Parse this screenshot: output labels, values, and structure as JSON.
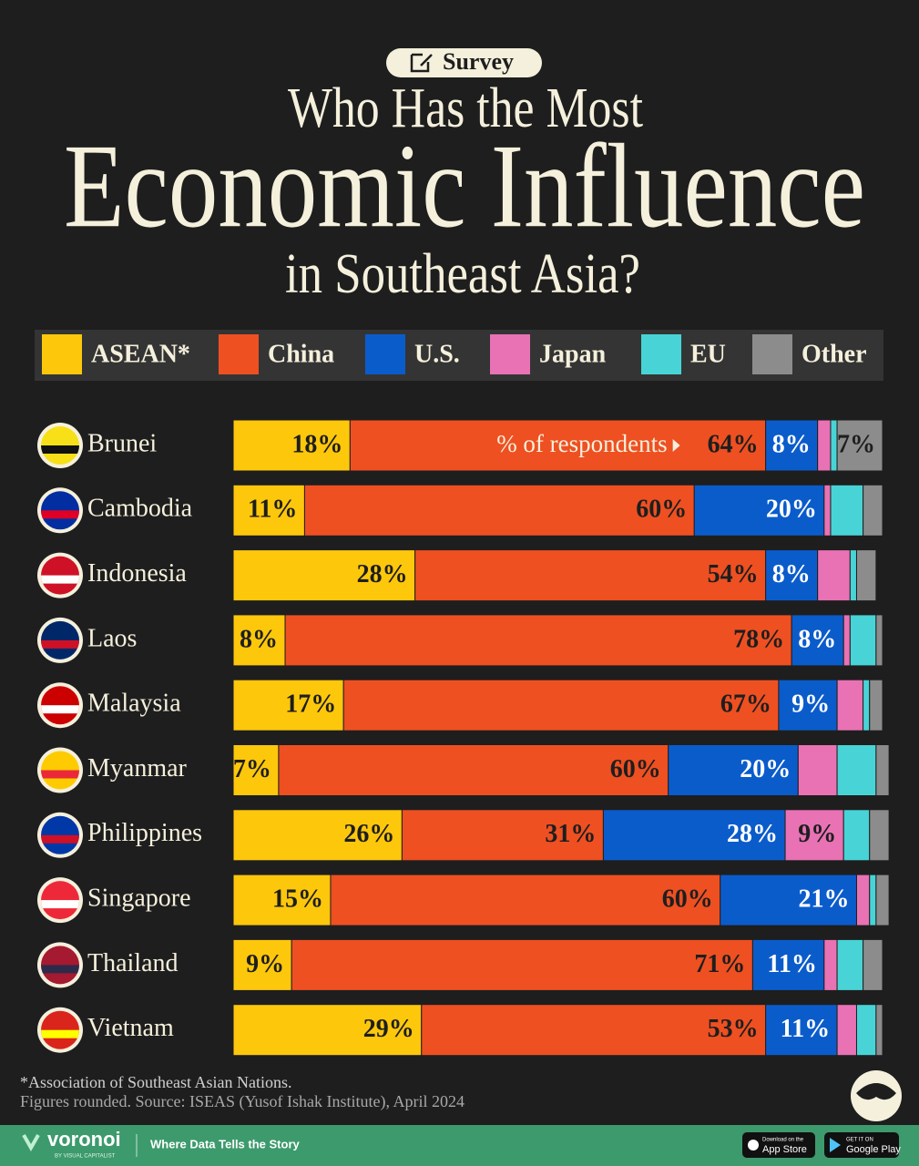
{
  "chart_data": {
    "type": "stacked_bar_horizontal",
    "badge": "Survey",
    "title_parts": [
      "Who Has the Most",
      "Economic Influence",
      "in Southeast Asia?"
    ],
    "annotation": "% of respondents",
    "categories": [
      "Brunei",
      "Cambodia",
      "Indonesia",
      "Laos",
      "Malaysia",
      "Myanmar",
      "Philippines",
      "Singapore",
      "Thailand",
      "Vietnam"
    ],
    "xlim": [
      0,
      100
    ],
    "legend": "top",
    "series": [
      {
        "name": "ASEAN*",
        "color": "#fdc70c",
        "values": [
          18,
          11,
          28,
          8,
          17,
          7,
          26,
          15,
          9,
          29
        ],
        "value_labels": [
          "18%",
          "11%",
          "28%",
          "8%",
          "17%",
          "7%",
          "26%",
          "15%",
          "9%",
          "29%"
        ]
      },
      {
        "name": "China",
        "color": "#ee5022",
        "values": [
          64,
          60,
          54,
          78,
          67,
          60,
          31,
          60,
          71,
          53
        ],
        "value_labels": [
          "64%",
          "60%",
          "54%",
          "78%",
          "67%",
          "60%",
          "31%",
          "60%",
          "71%",
          "53%"
        ]
      },
      {
        "name": "U.S.",
        "color": "#0b5ccb",
        "values": [
          8,
          20,
          8,
          8,
          9,
          20,
          28,
          21,
          11,
          11
        ],
        "value_labels": [
          "8%",
          "20%",
          "8%",
          "8%",
          "9%",
          "20%",
          "28%",
          "21%",
          "11%",
          "11%"
        ]
      },
      {
        "name": "Japan",
        "color": "#e872b4",
        "values": [
          2,
          1,
          5,
          1,
          4,
          6,
          9,
          2,
          2,
          3
        ],
        "value_labels": [
          null,
          null,
          null,
          null,
          null,
          null,
          "9%",
          null,
          null,
          null
        ]
      },
      {
        "name": "EU",
        "color": "#48d4d6",
        "values": [
          1,
          5,
          1,
          4,
          1,
          6,
          4,
          1,
          4,
          3
        ],
        "value_labels": [
          null,
          null,
          null,
          null,
          null,
          null,
          null,
          null,
          null,
          null
        ]
      },
      {
        "name": "Other",
        "color": "#8c8c8c",
        "values": [
          7,
          3,
          3,
          1,
          2,
          2,
          3,
          2,
          3,
          1
        ],
        "value_labels": [
          "7%",
          null,
          null,
          null,
          null,
          null,
          null,
          null,
          null,
          null
        ]
      }
    ],
    "notes": [
      "*Association of Southeast Asian Nations.",
      "Figures rounded. Source: ISEAS (Yusof Ishak Institute), April 2024"
    ]
  },
  "footer": {
    "brand": "voronoi",
    "brand_sub": "BY VISUAL CAPITALIST",
    "tagline": "Where Data Tells the Story",
    "app_store_top": "Download on the",
    "app_store": "App Store",
    "google_top": "GET IT ON",
    "google": "Google Play"
  }
}
